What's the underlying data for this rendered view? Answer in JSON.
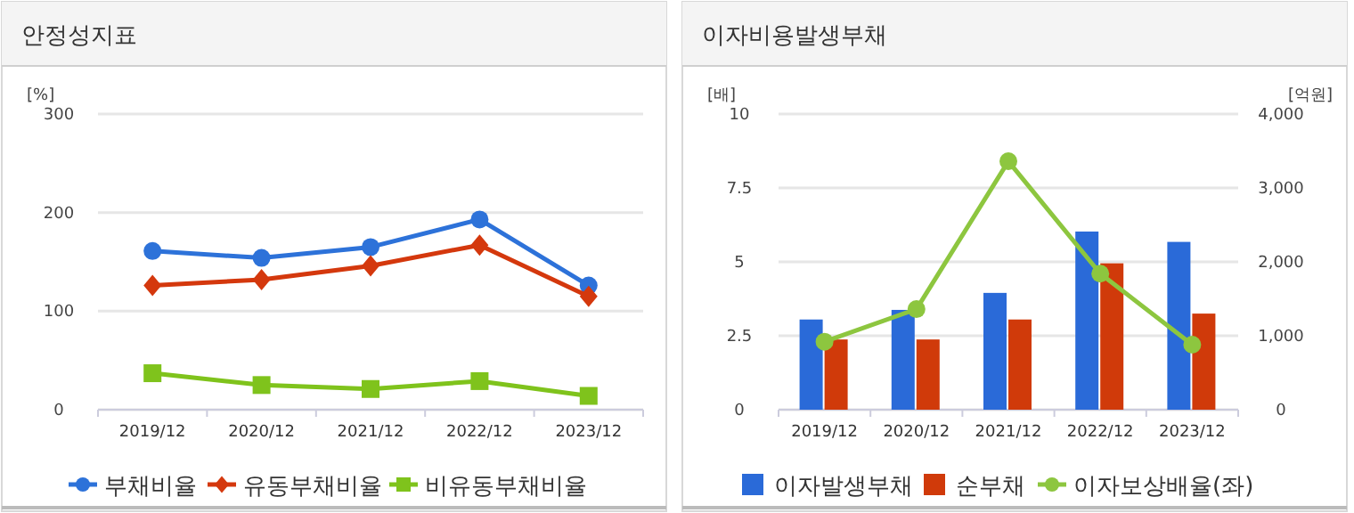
{
  "chart_data": [
    {
      "type": "line",
      "title": "안정성지표",
      "ylabel": "[%]",
      "categories": [
        "2019/12",
        "2020/12",
        "2021/12",
        "2022/12",
        "2023/12"
      ],
      "ylim": [
        0,
        300
      ],
      "yticks": [
        0,
        100,
        200,
        300
      ],
      "grid": "y",
      "legend": "bottom",
      "series": [
        {
          "name": "부채비율",
          "color": "#2d72d9",
          "marker": "circle",
          "values": [
            161,
            154,
            165,
            193,
            126
          ]
        },
        {
          "name": "유동부채비율",
          "color": "#d4380d",
          "marker": "diamond",
          "values": [
            126,
            132,
            146,
            167,
            115
          ]
        },
        {
          "name": "비유동부채비율",
          "color": "#7fc31c",
          "marker": "square",
          "values": [
            37,
            25,
            21,
            29,
            14
          ]
        }
      ]
    },
    {
      "type": "bar",
      "title": "이자비용발생부채",
      "ylabel": "[배]",
      "y2label": "[억원]",
      "categories": [
        "2019/12",
        "2020/12",
        "2021/12",
        "2022/12",
        "2023/12"
      ],
      "ylim": [
        0,
        10
      ],
      "yticks": [
        0,
        {
          "value": 2.5,
          "label": "2.5"
        },
        5,
        {
          "value": 7.5,
          "label": "7.5"
        },
        10
      ],
      "y2lim": [
        0,
        4000
      ],
      "y2ticks": [
        0,
        {
          "value": 1000,
          "label": "1,000"
        },
        {
          "value": 2000,
          "label": "2,000"
        },
        {
          "value": 3000,
          "label": "3,000"
        },
        {
          "value": 4000,
          "label": "4,000"
        }
      ],
      "grid": "y",
      "legend": "bottom",
      "series": [
        {
          "name": "이자발생부채",
          "color": "#2a6ad8",
          "axis": "y2",
          "values": [
            1220,
            1350,
            1580,
            2410,
            2270
          ]
        },
        {
          "name": "순부채",
          "color": "#d03a0a",
          "axis": "y2",
          "values": [
            950,
            950,
            1220,
            1980,
            1300
          ]
        },
        {
          "name": "이자보상배율(좌)",
          "type": "line",
          "color": "#8dc63f",
          "marker": "circle",
          "values": [
            2.3,
            3.4,
            8.4,
            4.6,
            2.2
          ]
        }
      ]
    }
  ]
}
